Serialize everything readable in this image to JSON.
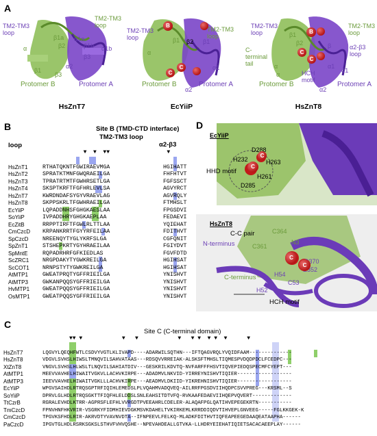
{
  "panels": {
    "A": "A",
    "B": "B",
    "C": "C",
    "D": "D"
  },
  "panelA": {
    "structures": [
      {
        "title": "HsZnT7",
        "labels": [
          "TM2-TM3 loop",
          "TM2-TM3 loop",
          "α1a",
          "α1b",
          "β1a",
          "β2",
          "β3",
          "β1b",
          "α",
          "β1",
          "β3",
          "α2"
        ],
        "protomerA": "Protomer A",
        "protomerB": "Protomer B"
      },
      {
        "title": "EcYiiP",
        "labels": [
          "TM2-TM3 loop",
          "TM2-TM3 loop",
          "β1",
          "β2",
          "β1",
          "α1",
          "α2",
          "α"
        ],
        "protomerA": "Protomer A",
        "protomerB": "Protomer B",
        "balls": [
          "B",
          "C",
          "C"
        ]
      },
      {
        "title": "HsZnT8",
        "labels": [
          "TM2-TM3 loop",
          "TM2-TM3 loop",
          "α1",
          "C-terminal tail",
          "α",
          "β2",
          "β1",
          "α",
          "β",
          "α2-β3 loop",
          "α1",
          "HCH motif",
          "α2"
        ],
        "protomerA": "Protomer A",
        "protomerB": "Protomer B",
        "balls": [
          "B",
          "C",
          "C"
        ]
      }
    ]
  },
  "panelB": {
    "header": "Site B (TMD-CTD interface)",
    "sub1": "TM2-TM3 loop",
    "sub2": "α2-β3",
    "loop": "loop",
    "names": [
      "HsZnT1",
      "HsZnT2",
      "HsZnT3",
      "HsZnT4",
      "HsZnT7",
      "HsZnT8",
      "EcYiiP",
      "SoYiiP",
      "EcZitB",
      "CmCzcD",
      "SpCzcD",
      "SpZnT1",
      "SpMntE",
      "ScZRC1",
      "ScCOT1",
      "AtMTP1",
      "AtMTP3",
      "HvMTP1",
      "OsMTP1"
    ],
    "seqs1": [
      "RTHATQKNTFGWIRAEVMGA",
      "SPRATKTMNFGWQRAEILGA",
      "TPRATRTMTFGWHRSETLGA",
      "SKSPTKRFTFGFHRLEVLSA",
      "KWRDNDAFSYGYVRAEVLAG",
      "SKPPSKRLTFGWHRAEILGA",
      "LQPADDNHSFGHGKAESLAA",
      "IVPADDHRYGHGKAEPLAA",
      "RRPPTIRFTFGWLRLTTLAA",
      "KRPANKRRTFGYYRFEILAA",
      "NREENQYTYGLYKRFSLGA",
      "STSHEPKRTYGYHRAEILAA",
      "RQPADRHRFGFKIEDLAS",
      "NRGPDAKYTYGWKREILGA",
      "NRNPSTYTYGWKREILGA",
      "GWEATPRQTYGFFRIEILGA",
      "GWKANPQQSYGFFRIEILGA",
      "GWEATPQQSYGFFRIEILGA",
      "GWEATPQQSYGFFRIEILGA"
    ],
    "seqs2": [
      "HGIHATT",
      "FHFHTVT",
      "FGFSSCT",
      "AGVYRCT",
      "AGVRQLY",
      "FTMHSLT",
      "FPGSDVI",
      "FEDAEVI",
      "YQIEHAT",
      "FDITHVT",
      "CGFQNIT",
      "FGIYDVT",
      "FGVFDTD",
      "HGIHSAT",
      "HGIHSAT",
      "YNISHVT",
      "YNISHVT",
      "YNISHVT",
      "YNISHVT"
    ]
  },
  "panelC": {
    "header": "Site C (C-terminal domain)",
    "names": [
      "HsZnT7",
      "HsZnT8",
      "XtZnT8",
      "AtMTP1",
      "AtMTP3",
      "EcYiiP",
      "SoYiiP",
      "TtCzrB",
      "TmCzcD",
      "CmCzcD",
      "PaCzcD"
    ],
    "seqs": [
      "LQGVYLQEQHFWTLCSDVYVGTLKLIVAPD----ADARWILSQTHN---IFTQAGVRQLYVQIDFAAM--------------",
      "VDGVLSVHSLHIWSLTMNQVILSAHVATAAS---RDSQVVRREIAK-ALSKSFTMHSLTIQMESPVDQDPDCLFCEDPC---",
      "VNGVLSVHSLHLWSLTLNQVILSAHIATDIV---GESKRILKDVTQ-NVFARFFFHSVTIQVEPIEDQSPECMFCYEPT---",
      "MEEVVAVHELHIWAITVGKVLLACHVKIRPE---ADADMVLNKVID-YIRREYNISHVTIQIER------------------",
      "IEEVVAVHELHIWAITVGKLLLACHVKIRPE---AEADMVLDKIID-YIKREHNISHVTIQIER------------------",
      "WPGVSAIHDLRTRQSGPTRFIQIHLEMEDSLPLVQAHMVADQVEQ-AILRRFPGSDVIIHQDPCSVVPREG---KRSML--S",
      "DPRVLGLHDLRTRQSGKTTFIQFHLELDDSLSNLEAHSITDTVFQ-RVKAAFEDAEVIIHQEPVQVERT-------------",
      "RGRALEVHDLKTRR-AGPRSFLEFHLVVRGDTPVEEAHRLCDELER-ALAQAFPGLQATIHVEPEGEKRTN-----------",
      "FPNVHNFHKVRIR-VSGRKYFIDMHIEVDGKMSVKDAHELTVKIRKEMLKRRDDIQDVTIHVEPLGNVEEG-----FGLKKGEK-K",
      "TPGVKSFHDLRIR-AKRVDTYVAVNVDTA--IFNPEEVLFELKQ-MLADKFDITHVTIQFEAPEEGEDAAQEATAAPHA------",
      "IPGVTGLHDLRSRKSGKSLSTHVFVHVQSHE--NPEVAHDEALLGTVKA-LLHDRYEIEHATIQIETSACACAEEPLAY------"
    ]
  },
  "panelD": {
    "ecyiip": "EcYiiP",
    "hhd": "HHD motif",
    "ecres": [
      "D288",
      "H232",
      "H263",
      "H261",
      "D285"
    ],
    "hsznt8": "HsZnT8",
    "ccpair": "C-C pair",
    "nterm": "N-terminus",
    "cterm": "C-terminus",
    "hsres": [
      "C364",
      "C361",
      "H54",
      "C53",
      "H52",
      "E352",
      "D370",
      "N3"
    ],
    "hch": "HCH motif"
  }
}
